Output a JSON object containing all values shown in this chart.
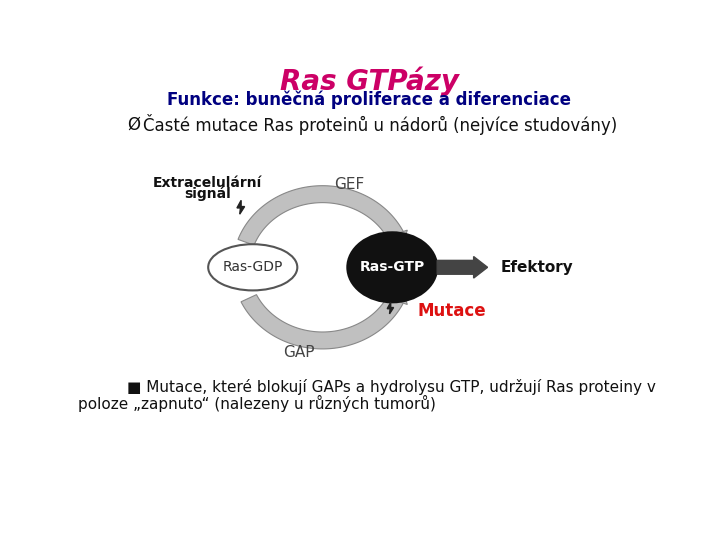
{
  "title": "Ras GTPázy",
  "title_color": "#cc0066",
  "subtitle": "Funkce: buněčná proliferace a diferenciace",
  "subtitle_color": "#000080",
  "bullet1_prefix": "Ø",
  "bullet1_text": "Časté mutace Ras proteinů u nádorů (nejvíce studovány)",
  "bullet2": "■ Mutace, které blokují GAPs a hydrolysu GTP, udržují Ras proteiny v",
  "bullet2b": "poloze „zapnuto“ (nalezeny u různých tumorů)",
  "bg_color": "#ffffff",
  "text_color": "#111111",
  "diagram_label_extracellular_line1": "Extracelulární",
  "diagram_label_extracellular_line2": "signál",
  "diagram_label_gef": "GEF",
  "diagram_label_gap": "GAP",
  "diagram_label_rasgdp": "Ras-GDP",
  "diagram_label_rasgtp": "Ras-GTP",
  "diagram_label_efektory": "Efektory",
  "diagram_label_mutace": "Mutace",
  "arrow_color": "#c0c0c0",
  "arrow_edge_color": "#888888",
  "dark_circle_color": "#111111",
  "efektory_arrow_color": "#444444"
}
